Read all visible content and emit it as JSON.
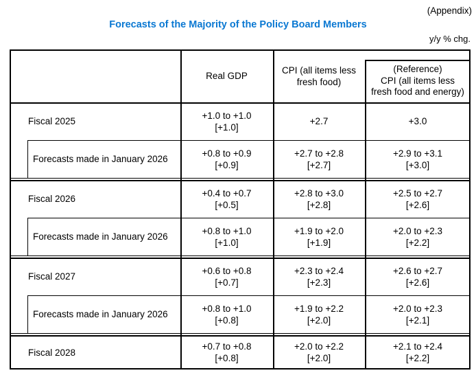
{
  "page": {
    "appendix_note": "(Appendix)",
    "title": "Forecasts of the Majority of the Policy Board Members",
    "unit_note": "y/y % chg."
  },
  "colors": {
    "title": "#0a78d2",
    "text": "#000000",
    "border": "#000000",
    "background": "#ffffff"
  },
  "table": {
    "col_headers": {
      "row_label": "",
      "gdp": "Real GDP",
      "cpi_line1": "CPI (all items less",
      "cpi_line2": "fresh food)",
      "ref_line1": "(Reference)",
      "ref_line2": "CPI (all items less",
      "ref_line3": "fresh food and energy)"
    },
    "rows": [
      {
        "label": "Fiscal 2025",
        "gdp_range": "+1.0 to +1.0",
        "gdp_median": "[+1.0]",
        "cpi_range": "+2.7",
        "cpi_median": "",
        "ref_range": "+3.0",
        "ref_median": ""
      },
      {
        "label": "Forecasts made in January 2026",
        "gdp_range": "+0.8 to +0.9",
        "gdp_median": "[+0.9]",
        "cpi_range": "+2.7 to +2.8",
        "cpi_median": "[+2.7]",
        "ref_range": "+2.9 to +3.1",
        "ref_median": "[+3.0]"
      },
      {
        "label": "Fiscal 2026",
        "gdp_range": "+0.4 to +0.7",
        "gdp_median": "[+0.5]",
        "cpi_range": "+2.8 to +3.0",
        "cpi_median": "[+2.8]",
        "ref_range": "+2.5 to +2.7",
        "ref_median": "[+2.6]"
      },
      {
        "label": "Forecasts made in January 2026",
        "gdp_range": "+0.8 to +1.0",
        "gdp_median": "[+1.0]",
        "cpi_range": "+1.9 to +2.0",
        "cpi_median": "[+1.9]",
        "ref_range": "+2.0 to +2.3",
        "ref_median": "[+2.2]"
      },
      {
        "label": "Fiscal 2027",
        "gdp_range": "+0.6 to +0.8",
        "gdp_median": "[+0.7]",
        "cpi_range": "+2.3 to +2.4",
        "cpi_median": "[+2.3]",
        "ref_range": "+2.6 to +2.7",
        "ref_median": "[+2.6]"
      },
      {
        "label": "Forecasts made in January 2026",
        "gdp_range": "+0.8 to +1.0",
        "gdp_median": "[+0.8]",
        "cpi_range": "+1.9 to +2.2",
        "cpi_median": "[+2.0]",
        "ref_range": "+2.0 to +2.3",
        "ref_median": "[+2.1]"
      },
      {
        "label": "Fiscal 2028",
        "gdp_range": "+0.7 to +0.8",
        "gdp_median": "[+0.8]",
        "cpi_range": "+2.0 to +2.2",
        "cpi_median": "[+2.0]",
        "ref_range": "+2.1 to +2.4",
        "ref_median": "[+2.2]"
      }
    ]
  }
}
